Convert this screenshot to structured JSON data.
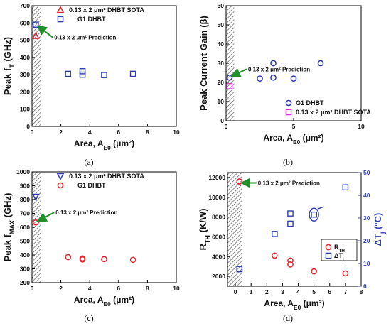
{
  "chart_data": [
    {
      "id": "a",
      "type": "scatter",
      "caption": "(a)",
      "ylabel": "Peak f",
      "ylabel_sub": "T",
      "ylabel_tail": " (GHz)",
      "xlabel": "Area, A",
      "xlabel_sub": "E0",
      "xlabel_unit": " (μm²)",
      "xlim": [
        0,
        10
      ],
      "ylim": [
        0,
        700
      ],
      "xticks": [
        0,
        2,
        4,
        6,
        8,
        10
      ],
      "yticks": [
        0,
        100,
        200,
        300,
        400,
        500,
        600,
        700
      ],
      "hatch_x": 0.6,
      "legend": "top-right",
      "series": [
        {
          "name": "0.13 x 2 μm² DHBT SOTA",
          "marker": "triangle",
          "color": "#e8242c",
          "x": [
            0.26
          ],
          "y": [
            525
          ]
        },
        {
          "name": "G1 DHBT",
          "marker": "square",
          "color": "#2f3fb0",
          "x": [
            0.26,
            2.5,
            3.5,
            3.5,
            5.0,
            7.0
          ],
          "y": [
            590,
            305,
            320,
            300,
            298,
            305
          ]
        }
      ],
      "annotation": {
        "text": "0.13 x 2 μm² Prediction",
        "x": 0.26,
        "y": 590
      }
    },
    {
      "id": "b",
      "type": "scatter",
      "caption": "(b)",
      "ylabel": "Peak Current Gain (β)",
      "xlabel": "Area, A",
      "xlabel_sub": "E0",
      "xlabel_unit": " (μm²)",
      "xlim": [
        0,
        10
      ],
      "ylim": [
        0,
        60
      ],
      "xticks": [
        0,
        5,
        10
      ],
      "yticks": [
        0,
        10,
        20,
        30,
        40,
        50,
        60
      ],
      "hatch_x": 0.6,
      "legend": "bottom-right",
      "series": [
        {
          "name": "G1 DHBT",
          "marker": "circle",
          "color": "#2f3fb0",
          "x": [
            0.26,
            2.5,
            3.5,
            3.5,
            5.0,
            7.0
          ],
          "y": [
            22.5,
            22,
            22.5,
            30,
            22,
            30
          ]
        },
        {
          "name": "0.13 x 2 μm² DHBT SOTA",
          "marker": "square",
          "color": "#d63fd6",
          "x": [
            0.26
          ],
          "y": [
            18
          ]
        }
      ],
      "annotation": {
        "text": "0.13 x 2 μm² Prediction",
        "x": 0.26,
        "y": 22.5
      }
    },
    {
      "id": "c",
      "type": "scatter",
      "caption": "(c)",
      "ylabel": "Peak f",
      "ylabel_sub": "MAX",
      "ylabel_tail": " (GHz)",
      "xlabel": "Area, A",
      "xlabel_sub": "E0",
      "xlabel_unit": " (μm²)",
      "xlim": [
        0,
        10
      ],
      "ylim": [
        200,
        1000
      ],
      "xticks": [
        0,
        2,
        4,
        6,
        8,
        10
      ],
      "yticks": [
        200,
        300,
        400,
        500,
        600,
        700,
        800,
        900,
        1000
      ],
      "hatch_x": 0.6,
      "legend": "top-right",
      "series": [
        {
          "name": "0.13 x 2 μm² DHBT SOTA",
          "marker": "triangle-down",
          "color": "#2f3fb0",
          "x": [
            0.26
          ],
          "y": [
            820
          ]
        },
        {
          "name": "G1 DHBT",
          "marker": "circle",
          "color": "#e8242c",
          "x": [
            0.26,
            2.5,
            3.5,
            3.5,
            5.0,
            7.0
          ],
          "y": [
            635,
            385,
            375,
            368,
            370,
            365
          ]
        }
      ],
      "annotation": {
        "text": "0.13 x 2 μm² Prediction",
        "x": 0.26,
        "y": 635
      }
    },
    {
      "id": "d",
      "type": "scatter",
      "caption": "(d)",
      "ylabel": "R",
      "ylabel_sub": "TH",
      "ylabel_tail": " (K/W)",
      "y2label": "ΔT",
      "y2label_sub": "j",
      "y2label_tail": " (°C)",
      "xlabel": "Area, A",
      "xlabel_sub": "E0",
      "xlabel_unit": " (μm²)",
      "xlim": [
        -0.5,
        8
      ],
      "ylim": [
        1000,
        12500
      ],
      "y2lim": [
        0,
        50
      ],
      "xticks": [
        0,
        1,
        2,
        3,
        4,
        5,
        6,
        7,
        8
      ],
      "yticks": [
        2000,
        4000,
        6000,
        8000,
        10000,
        12000
      ],
      "y2ticks": [
        0,
        10,
        20,
        30,
        40,
        50
      ],
      "hatch_x": 0.45,
      "legend": "right",
      "series": [
        {
          "name": "R",
          "name_sub": "TH",
          "marker": "circle",
          "color": "#e8242c",
          "axis": "left",
          "x": [
            0.26,
            2.5,
            3.5,
            3.5,
            5.0,
            7.0
          ],
          "y": [
            11600,
            4100,
            3600,
            3200,
            2500,
            2300
          ]
        },
        {
          "name": "ΔT",
          "name_sub": "j",
          "marker": "square",
          "color": "#2f3fb0",
          "axis": "right",
          "x": [
            0.26,
            2.5,
            3.5,
            3.5,
            5.0,
            7.0
          ],
          "y": [
            7.5,
            23,
            27.5,
            32,
            31.5,
            43.5
          ]
        }
      ],
      "annotation": {
        "text": "0.13 x 2 μm² Prediction",
        "x": 0.26,
        "y": 11600
      }
    }
  ]
}
